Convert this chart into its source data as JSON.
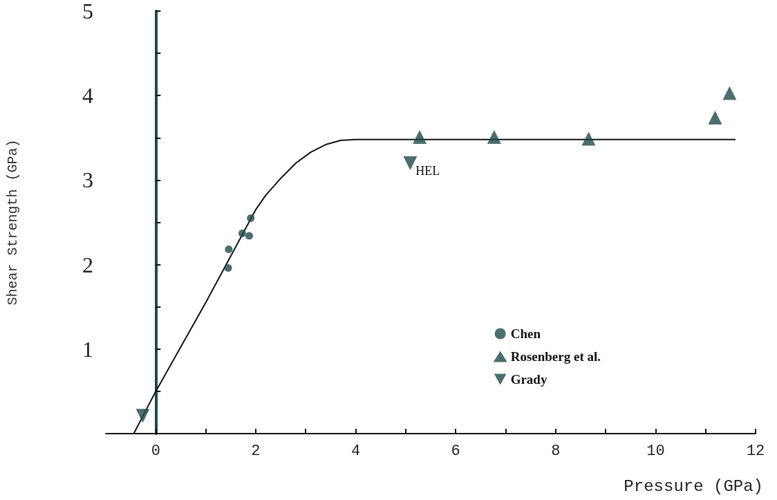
{
  "chart_data": {
    "type": "scatter",
    "xlabel": "Pressure (GPa)",
    "ylabel": "Shear Strength (GPa)",
    "xlim": [
      -1,
      12
    ],
    "xticks": [
      0,
      {
        "value": 1,
        "label": null
      },
      2,
      {
        "value": 3,
        "label": null
      },
      4,
      {
        "value": 5,
        "label": null
      },
      6,
      {
        "value": 7,
        "label": null
      },
      8,
      {
        "value": 9,
        "label": null
      },
      10,
      {
        "value": 11,
        "label": null
      },
      12
    ],
    "ylim": [
      0,
      5
    ],
    "yticks": [
      {
        "value": 0,
        "label": null
      },
      {
        "value": 0.5,
        "label": null
      },
      1,
      {
        "value": 1.5,
        "label": null
      },
      2,
      {
        "value": 2.5,
        "label": null
      },
      3,
      {
        "value": 3.5,
        "label": null
      },
      4,
      {
        "value": 4.5,
        "label": null
      },
      5
    ],
    "legend": "bottom right",
    "grid": false,
    "series": [
      {
        "name": "Chen",
        "marker": "circle",
        "color": "#1f4a48",
        "x": [
          1.45,
          1.46,
          1.73,
          1.87,
          1.9
        ],
        "values": [
          1.96,
          2.18,
          2.37,
          2.34,
          2.55
        ]
      },
      {
        "name": "Rosenberg et al.",
        "marker": "triangle",
        "color": "#1f4a48",
        "x": [
          5.28,
          6.77,
          8.66,
          11.19,
          11.48
        ],
        "values": [
          3.51,
          3.51,
          3.49,
          3.74,
          4.03
        ]
      },
      {
        "name": "Grady",
        "marker": "triangle_down",
        "color": "#1f4a48",
        "x": [
          -0.26,
          5.09
        ],
        "values": [
          0.21,
          3.2
        ]
      },
      {
        "type": "line",
        "marker": "none",
        "line_style": "solid",
        "color": "#111111",
        "x": [
          -0.44,
          0,
          1,
          2,
          2.2,
          2.5,
          2.8,
          3.1,
          3.4,
          3.7,
          4,
          11.6
        ],
        "values": [
          0,
          0.5,
          1.55,
          2.65,
          2.82,
          3.02,
          3.2,
          3.33,
          3.42,
          3.47,
          3.48,
          3.48
        ]
      }
    ],
    "annotations": [
      {
        "text": "HEL",
        "x": 5.09,
        "y": 3.2
      }
    ]
  }
}
